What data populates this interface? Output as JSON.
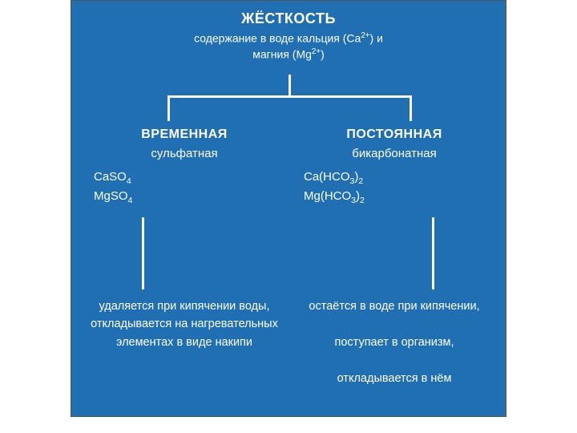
{
  "diagram": {
    "type": "tree",
    "background_color": "#1f6fb2",
    "line_color": "#ffffff",
    "text_color": "#ffffff",
    "root": {
      "title": "ЖЁСТКОСТЬ",
      "subtitle": "содержание в воде кальция (Ca²⁺) и магния (Mg²⁺)",
      "title_fontsize": 18,
      "sub_fontsize": 14
    },
    "children": [
      {
        "title": "ВРЕМЕННАЯ",
        "subtitle": "сульфатная",
        "formula1": "CaSO₄",
        "formula2": "MgSO₄",
        "description": "удаляется при кипячении воды, откладывается на нагревательных элементах в виде накипи"
      },
      {
        "title": "ПОСТОЯННАЯ",
        "subtitle": "бикарбонатная",
        "formula1": "Ca(HCO₃)₂",
        "formula2": "Mg(HCO₃)₂",
        "description": "остаётся в воде при кипячении,\nпоступает в организм,\nоткладывается в нём"
      }
    ],
    "child_title_fontsize": 16,
    "child_sub_fontsize": 15,
    "desc_fontsize": 14.5
  }
}
